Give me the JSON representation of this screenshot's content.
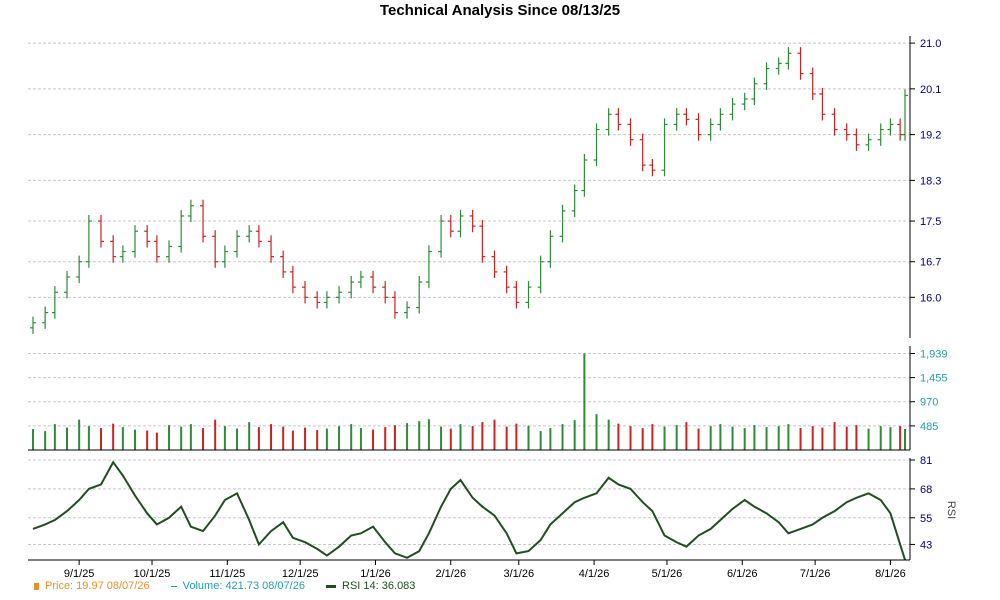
{
  "title": "Technical Analysis Since 08/13/25",
  "colors": {
    "up": "#2e8b3a",
    "down": "#cc2222",
    "rsi": "#1f4f1f",
    "grid": "#c8c8c8",
    "price_axis_text": "#000080",
    "volume_axis_text": "#22a0a8",
    "legend_price": "#e8902a",
    "legend_volume": "#22a0a8",
    "legend_rsi": "#1f4f1f"
  },
  "legend": {
    "price_label": "Price: 19.97  08/07/26",
    "volume_label": "Volume: 421.73  08/07/26",
    "rsi_label": "RSI 14: 36.083"
  },
  "chart_data": [
    {
      "type": "candlestick",
      "title": "Technical Analysis Since 08/13/25",
      "x_tick_labels": [
        "9/1/25",
        "10/1/25",
        "11/1/25",
        "12/1/25",
        "1/1/26",
        "2/1/26",
        "3/1/26",
        "4/1/26",
        "5/1/26",
        "6/1/26",
        "7/1/26",
        "8/1/26"
      ],
      "x_tick_dates": [
        "2025-09-01",
        "2025-10-01",
        "2025-11-01",
        "2025-12-01",
        "2026-01-01",
        "2026-02-01",
        "2026-03-01",
        "2026-04-01",
        "2026-05-01",
        "2026-06-01",
        "2026-07-01",
        "2026-08-01"
      ],
      "x_range": [
        "2025-08-13",
        "2026-08-07"
      ],
      "y_ticks": [
        "16.0",
        "16.7",
        "17.5",
        "18.3",
        "19.2",
        "20.1",
        "21.0"
      ],
      "ylim": [
        15.2,
        21.1
      ],
      "grid": true,
      "series": [
        {
          "dates": [
            "2025-08-13",
            "2025-08-18",
            "2025-08-22",
            "2025-08-27",
            "2025-09-01",
            "2025-09-05",
            "2025-09-10",
            "2025-09-15",
            "2025-09-19",
            "2025-09-24",
            "2025-09-29",
            "2025-10-03",
            "2025-10-08",
            "2025-10-13",
            "2025-10-17",
            "2025-10-22",
            "2025-10-27",
            "2025-10-31",
            "2025-11-05",
            "2025-11-10",
            "2025-11-14",
            "2025-11-19",
            "2025-11-24",
            "2025-11-28",
            "2025-12-03",
            "2025-12-08",
            "2025-12-12",
            "2025-12-17",
            "2025-12-22",
            "2025-12-26",
            "2025-12-31",
            "2026-01-05",
            "2026-01-09",
            "2026-01-14",
            "2026-01-19",
            "2026-01-23",
            "2026-01-28",
            "2026-02-01",
            "2026-02-05",
            "2026-02-10",
            "2026-02-14",
            "2026-02-19",
            "2026-02-24",
            "2026-02-28",
            "2026-03-05",
            "2026-03-10",
            "2026-03-14",
            "2026-03-19",
            "2026-03-24",
            "2026-03-28",
            "2026-04-02",
            "2026-04-07",
            "2026-04-11",
            "2026-04-16",
            "2026-04-21",
            "2026-04-25",
            "2026-04-30",
            "2026-05-05",
            "2026-05-09",
            "2026-05-14",
            "2026-05-19",
            "2026-05-23",
            "2026-05-28",
            "2026-06-02",
            "2026-06-06",
            "2026-06-11",
            "2026-06-16",
            "2026-06-20",
            "2026-06-25",
            "2026-06-30",
            "2026-07-04",
            "2026-07-09",
            "2026-07-14",
            "2026-07-18",
            "2026-07-23",
            "2026-07-28",
            "2026-08-01",
            "2026-08-05",
            "2026-08-07"
          ],
          "close": [
            15.5,
            15.7,
            16.1,
            16.4,
            16.7,
            17.5,
            17.1,
            16.8,
            16.9,
            17.3,
            17.1,
            16.8,
            17.0,
            17.6,
            17.8,
            17.2,
            16.7,
            16.9,
            17.2,
            17.3,
            17.1,
            16.8,
            16.5,
            16.2,
            16.0,
            15.9,
            16.0,
            16.1,
            16.3,
            16.4,
            16.2,
            16.0,
            15.7,
            15.8,
            16.3,
            16.9,
            17.5,
            17.3,
            17.6,
            17.4,
            16.8,
            16.5,
            16.2,
            15.9,
            16.2,
            16.7,
            17.2,
            17.7,
            18.1,
            18.7,
            19.3,
            19.6,
            19.4,
            19.1,
            18.6,
            18.5,
            19.4,
            19.6,
            19.5,
            19.2,
            19.4,
            19.6,
            19.8,
            19.9,
            20.2,
            20.5,
            20.6,
            20.8,
            20.4,
            20.0,
            19.6,
            19.3,
            19.2,
            19.0,
            19.1,
            19.3,
            19.4,
            19.2,
            19.97
          ]
        }
      ]
    },
    {
      "type": "bar",
      "title": "",
      "y_ticks": [
        "485",
        "970",
        "1,455",
        "1,939"
      ],
      "ylim": [
        0,
        2050
      ],
      "series": [
        {
          "values": [
            420,
            380,
            520,
            450,
            610,
            480,
            440,
            530,
            460,
            410,
            390,
            350,
            500,
            470,
            520,
            440,
            610,
            480,
            430,
            560,
            460,
            520,
            470,
            390,
            450,
            400,
            430,
            480,
            520,
            440,
            410,
            460,
            500,
            540,
            580,
            620,
            470,
            430,
            520,
            480,
            560,
            610,
            470,
            530,
            490,
            380,
            440,
            520,
            600,
            1939,
            720,
            610,
            530,
            480,
            440,
            520,
            470,
            500,
            560,
            430,
            480,
            520,
            470,
            440,
            500,
            460,
            480,
            520,
            440,
            480,
            450,
            560,
            470,
            500,
            430,
            480,
            460,
            480,
            421.73
          ]
        }
      ]
    },
    {
      "type": "line",
      "title": "",
      "ylabel": "RSI",
      "y_ticks": [
        "43",
        "55",
        "68",
        "81"
      ],
      "ylim": [
        36,
        81
      ],
      "series": [
        {
          "values": [
            50,
            52,
            54,
            58,
            63,
            68,
            70,
            80,
            74,
            65,
            57,
            52,
            55,
            60,
            51,
            49,
            56,
            63,
            66,
            54,
            43,
            49,
            53,
            46,
            44,
            41,
            38,
            42,
            47,
            48,
            51,
            44,
            39,
            37,
            40,
            48,
            60,
            68,
            72,
            64,
            60,
            56,
            48,
            39,
            40,
            45,
            52,
            57,
            62,
            64,
            66,
            73,
            70,
            68,
            62,
            58,
            47,
            44,
            42,
            47,
            50,
            54,
            59,
            63,
            60,
            57,
            53,
            48,
            50,
            52,
            55,
            58,
            62,
            64,
            66,
            63,
            57,
            43,
            36.083
          ]
        }
      ]
    }
  ]
}
